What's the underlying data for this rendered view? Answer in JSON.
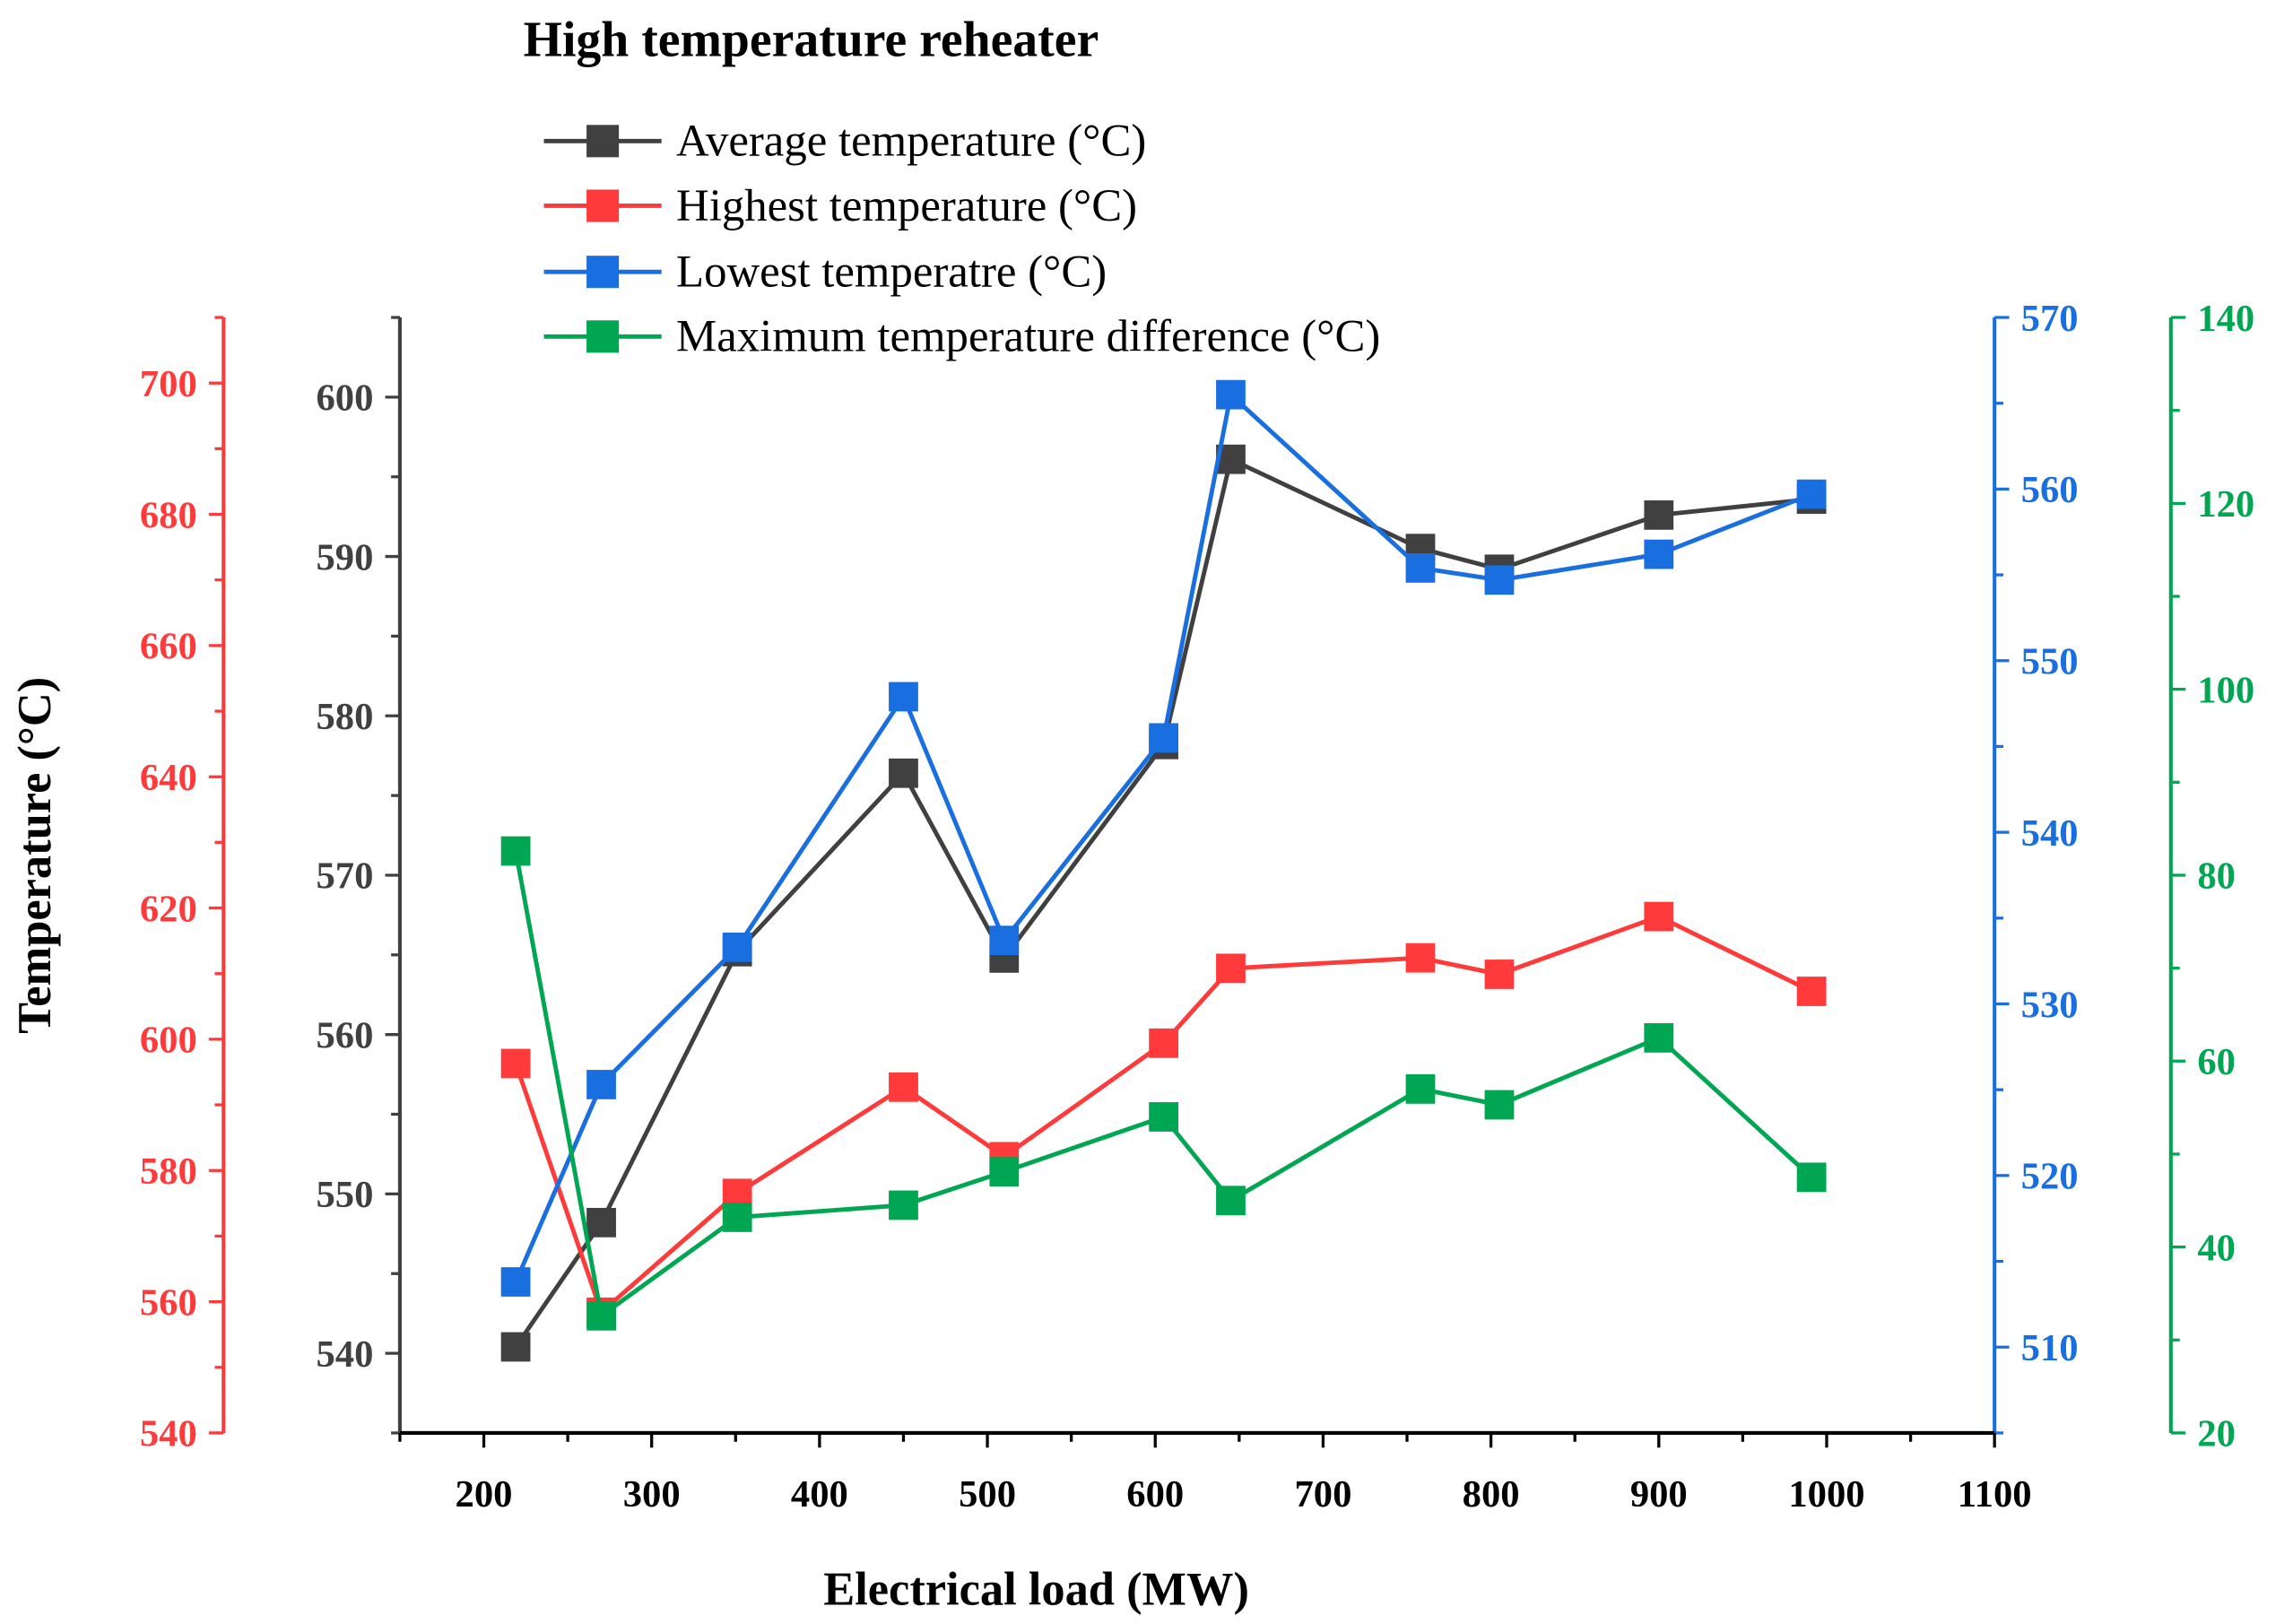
{
  "chart_data": {
    "type": "line",
    "title": "High  temperature reheater",
    "xlabel": "Electrical load (MW)",
    "ylabel": "Temperature (°C)",
    "xlim": [
      150,
      1100
    ],
    "xticks": [
      200,
      300,
      400,
      500,
      600,
      700,
      800,
      900,
      1000,
      1100
    ],
    "x": [
      219,
      270,
      351,
      450,
      510,
      605,
      645,
      758,
      805,
      900,
      991
    ],
    "legend_position": "top-center",
    "axes": [
      {
        "id": "black",
        "color": "#404040",
        "ylim": [
          535,
          605
        ],
        "ticks": [
          540,
          550,
          560,
          570,
          580,
          590,
          600
        ]
      },
      {
        "id": "red",
        "color": "#ff3a3a",
        "ylim": [
          540,
          710
        ],
        "ticks": [
          540,
          560,
          580,
          600,
          620,
          640,
          660,
          680,
          700
        ]
      },
      {
        "id": "blue",
        "color": "#1a6fe0",
        "ylim": [
          505,
          570
        ],
        "ticks": [
          510,
          520,
          530,
          540,
          550,
          560,
          570
        ]
      },
      {
        "id": "green",
        "color": "#00a651",
        "ylim": [
          20,
          140
        ],
        "ticks": [
          20,
          40,
          60,
          80,
          100,
          120,
          140
        ]
      }
    ],
    "series": [
      {
        "name": "Average temperature (°C)",
        "axis": "black",
        "color": "#404040",
        "values": [
          540.4,
          548.2,
          565.2,
          576.4,
          564.8,
          578.2,
          596.1,
          590.5,
          589.2,
          592.6,
          593.6
        ]
      },
      {
        "name": "Highest temperature  (°C)",
        "axis": "red",
        "color": "#ff3a3a",
        "values": [
          596.3,
          558.4,
          576.5,
          592.7,
          582.1,
          599.4,
          610.8,
          612.4,
          609.9,
          618.7,
          607.3
        ]
      },
      {
        "name": "Lowest temperatre (°C)",
        "axis": "blue",
        "color": "#1a6fe0",
        "values": [
          513.8,
          525.3,
          533.3,
          547.9,
          533.7,
          545.5,
          565.5,
          555.4,
          554.7,
          556.2,
          559.7
        ]
      },
      {
        "name": "Maximum temperature difference (°C)",
        "axis": "green",
        "color": "#00a651",
        "values": [
          82.6,
          32.6,
          43.2,
          44.5,
          48.1,
          54.0,
          45.0,
          57.0,
          55.3,
          62.5,
          47.5
        ]
      }
    ]
  }
}
